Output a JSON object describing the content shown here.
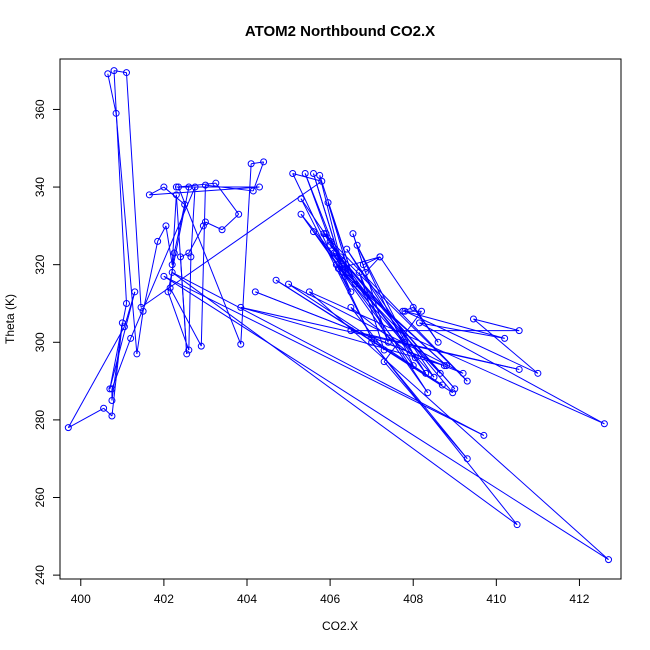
{
  "chart_data": {
    "type": "line",
    "title": "ATOM2 Northbound CO2.X",
    "xlabel": "CO2.X",
    "ylabel": "Theta (K)",
    "xlim": [
      399.5,
      413
    ],
    "ylim": [
      239,
      373
    ],
    "xticks": [
      400,
      402,
      404,
      406,
      408,
      410,
      412
    ],
    "yticks": [
      240,
      260,
      280,
      300,
      320,
      340,
      360
    ],
    "grid": false,
    "legend": "none",
    "series": [
      {
        "color": "#0000ff",
        "markers": "open-circle",
        "points": [
          [
            400.65,
            369.2
          ],
          [
            400.85,
            359
          ],
          [
            401.35,
            297
          ],
          [
            401.5,
            308
          ],
          [
            401.85,
            326
          ],
          [
            402.05,
            330
          ],
          [
            402.2,
            320
          ],
          [
            402.3,
            338
          ],
          [
            402.55,
            297
          ],
          [
            402.4,
            322
          ],
          [
            402.6,
            323
          ],
          [
            402.95,
            330
          ],
          [
            403.0,
            331
          ],
          [
            403.4,
            329
          ],
          [
            403.8,
            333
          ],
          [
            403.25,
            341
          ],
          [
            402.35,
            340
          ],
          [
            403.85,
            299.5
          ],
          [
            404.1,
            346
          ],
          [
            404.4,
            346.5
          ],
          [
            404.15,
            339
          ],
          [
            403.0,
            340.5
          ],
          [
            402.9,
            299
          ],
          [
            402.15,
            314
          ],
          [
            402.25,
            323
          ],
          [
            402.5,
            335.5
          ],
          [
            402.0,
            340
          ],
          [
            401.65,
            338
          ],
          [
            404.3,
            340
          ],
          [
            402.3,
            340
          ],
          [
            402.6,
            340
          ],
          [
            402.1,
            313
          ],
          [
            402.6,
            298
          ],
          [
            402.65,
            322
          ],
          [
            402.75,
            340
          ],
          [
            401.2,
            301
          ],
          [
            400.75,
            288
          ],
          [
            400.75,
            285
          ],
          [
            401.0,
            305
          ],
          [
            400.75,
            281
          ],
          [
            400.55,
            283
          ],
          [
            399.7,
            278
          ],
          [
            401.05,
            304
          ],
          [
            401.3,
            313
          ],
          [
            400.7,
            288
          ],
          [
            401.1,
            310
          ],
          [
            400.8,
            370
          ],
          [
            401.1,
            369.5
          ],
          [
            401.45,
            309
          ],
          [
            405.8,
            341.5
          ],
          [
            405.1,
            343.5
          ],
          [
            407.0,
            301
          ],
          [
            405.3,
            337
          ],
          [
            406.0,
            326
          ],
          [
            405.4,
            343.5
          ],
          [
            406.3,
            319
          ],
          [
            405.6,
            343.5
          ],
          [
            406.35,
            317
          ],
          [
            405.75,
            343
          ],
          [
            406.6,
            315
          ],
          [
            405.95,
            336
          ],
          [
            406.45,
            318
          ],
          [
            405.9,
            328
          ],
          [
            406.25,
            322
          ],
          [
            406.1,
            323
          ],
          [
            406.5,
            313
          ],
          [
            406.2,
            319
          ],
          [
            407.2,
            322
          ],
          [
            406.85,
            318
          ],
          [
            406.55,
            328
          ],
          [
            407.4,
            300
          ],
          [
            406.7,
            318
          ],
          [
            407.3,
            298
          ],
          [
            406.5,
            309
          ],
          [
            408.05,
            296
          ],
          [
            406.65,
            325
          ],
          [
            408.0,
            294
          ],
          [
            405.6,
            328.5
          ],
          [
            407.8,
            300
          ],
          [
            405.3,
            333
          ],
          [
            408.35,
            287
          ],
          [
            405.85,
            328
          ],
          [
            409.3,
            290
          ],
          [
            406.0,
            325
          ],
          [
            408.65,
            292
          ],
          [
            406.15,
            320
          ],
          [
            408.8,
            294
          ],
          [
            406.3,
            318
          ],
          [
            408.5,
            291
          ],
          [
            406.4,
            324
          ],
          [
            408.3,
            292
          ],
          [
            406.15,
            323
          ],
          [
            409.0,
            288
          ],
          [
            406.3,
            321
          ],
          [
            408.95,
            287
          ],
          [
            404.7,
            316
          ],
          [
            408.7,
            289
          ],
          [
            405.0,
            315
          ],
          [
            409.2,
            292
          ],
          [
            404.2,
            313
          ],
          [
            408.75,
            294
          ],
          [
            403.85,
            309
          ],
          [
            410.55,
            293
          ],
          [
            406.5,
            303
          ],
          [
            410.55,
            303
          ],
          [
            409.45,
            306
          ],
          [
            411.0,
            292
          ],
          [
            407.8,
            308
          ],
          [
            410.2,
            301
          ],
          [
            408.15,
            305
          ],
          [
            412.6,
            279
          ],
          [
            405.5,
            313
          ],
          [
            412.7,
            244
          ],
          [
            402.0,
            317
          ],
          [
            409.7,
            276
          ],
          [
            402.2,
            318
          ],
          [
            410.5,
            253
          ],
          [
            407.0,
            300
          ],
          [
            409.3,
            270
          ],
          [
            407.3,
            295
          ],
          [
            408.2,
            308
          ],
          [
            407.75,
            308
          ],
          [
            408.0,
            309
          ],
          [
            408.6,
            300
          ],
          [
            407.2,
            322
          ],
          [
            406.8,
            320
          ]
        ]
      }
    ]
  }
}
